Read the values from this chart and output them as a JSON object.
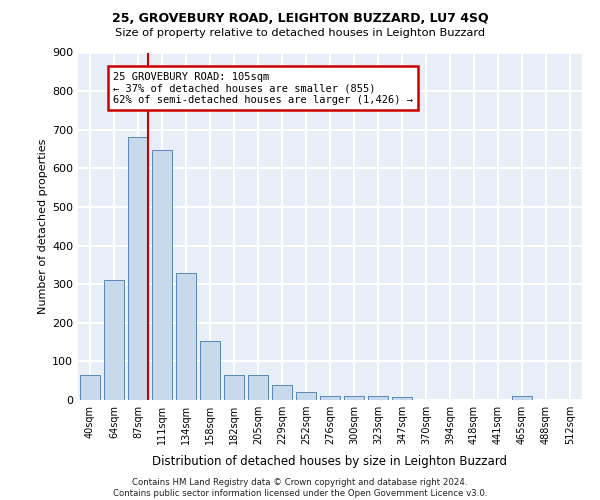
{
  "title1": "25, GROVEBURY ROAD, LEIGHTON BUZZARD, LU7 4SQ",
  "title2": "Size of property relative to detached houses in Leighton Buzzard",
  "xlabel": "Distribution of detached houses by size in Leighton Buzzard",
  "ylabel": "Number of detached properties",
  "bar_heights": [
    65,
    310,
    680,
    648,
    328,
    152,
    65,
    65,
    38,
    20,
    10,
    10,
    10,
    8,
    0,
    0,
    0,
    0,
    10,
    0,
    0
  ],
  "bin_labels": [
    "40sqm",
    "64sqm",
    "87sqm",
    "111sqm",
    "134sqm",
    "158sqm",
    "182sqm",
    "205sqm",
    "229sqm",
    "252sqm",
    "276sqm",
    "300sqm",
    "323sqm",
    "347sqm",
    "370sqm",
    "394sqm",
    "418sqm",
    "441sqm",
    "465sqm",
    "488sqm",
    "512sqm"
  ],
  "bar_color": "#c9d9ec",
  "bar_edge_color": "#5a87b8",
  "vline_x": 2.42,
  "vline_color": "#cc0000",
  "annotation_text": "25 GROVEBURY ROAD: 105sqm\n← 37% of detached houses are smaller (855)\n62% of semi-detached houses are larger (1,426) →",
  "annotation_box_facecolor": "white",
  "annotation_box_edgecolor": "#cc0000",
  "ylim": [
    0,
    900
  ],
  "yticks": [
    0,
    100,
    200,
    300,
    400,
    500,
    600,
    700,
    800,
    900
  ],
  "footer": "Contains HM Land Registry data © Crown copyright and database right 2024.\nContains public sector information licensed under the Open Government Licence v3.0.",
  "plot_bgcolor": "#e8eef7",
  "grid_color": "white"
}
